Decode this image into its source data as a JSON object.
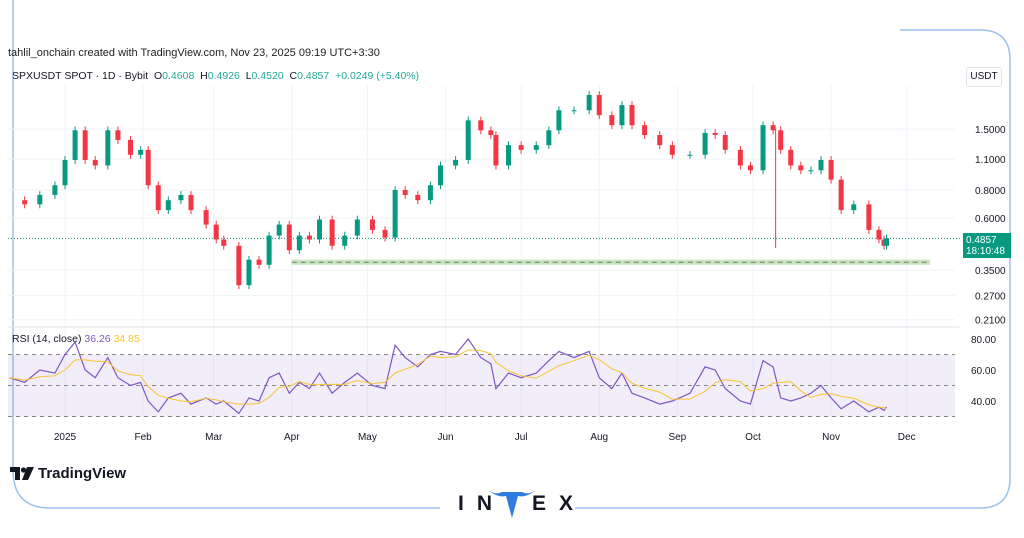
{
  "header": {
    "credit": "tahlil_onchain created with TradingView.com, Nov 23, 2025 09:19 UTC+3:30"
  },
  "legend": {
    "symbol": "SPXUSDT SPOT · 1D · Bybit",
    "o_label": "O",
    "o": "0.4608",
    "h_label": "H",
    "h": "0.4926",
    "l_label": "L",
    "l": "0.4520",
    "c_label": "C",
    "c": "0.4857",
    "change": "+0.0249 (+5.40%)"
  },
  "price_axis": {
    "unit": "USDT",
    "ticks": [
      "1.5000",
      "1.1000",
      "0.8000",
      "0.6000",
      "0.3500",
      "0.2700",
      "0.2100"
    ],
    "last_price": "0.4857",
    "countdown": "18:10:48"
  },
  "rsi": {
    "label": "RSI (14, close)",
    "value": "36.26",
    "ma_value": "34.85",
    "ticks": [
      "80.00",
      "60.00",
      "40.00"
    ]
  },
  "branding": {
    "tradingview": "TradingView",
    "invex": "INVEX"
  },
  "colors": {
    "up": "#089981",
    "down": "#f23645",
    "rsi": "#7e57c2",
    "rsi_ma": "#f7c430",
    "support": "#b9e0b0",
    "frame": "#9cc2f0",
    "invex_blue": "#2f7de1"
  },
  "chart_data": {
    "type": "candlestick",
    "scale": "log",
    "ylim": [
      0.19,
      2.4
    ],
    "grid": true,
    "x_ticks": [
      {
        "label": "2025",
        "date": "2025-01-01"
      },
      {
        "label": "Feb",
        "date": "2025-02-01"
      },
      {
        "label": "Mar",
        "date": "2025-03-01"
      },
      {
        "label": "Apr",
        "date": "2025-04-01"
      },
      {
        "label": "May",
        "date": "2025-05-01"
      },
      {
        "label": "Jun",
        "date": "2025-06-01"
      },
      {
        "label": "Jul",
        "date": "2025-07-01"
      },
      {
        "label": "Aug",
        "date": "2025-08-01"
      },
      {
        "label": "Sep",
        "date": "2025-09-01"
      },
      {
        "label": "Oct",
        "date": "2025-10-01"
      },
      {
        "label": "Nov",
        "date": "2025-11-01"
      },
      {
        "label": "Dec",
        "date": "2025-12-01"
      }
    ],
    "y_ticks": [
      1.5,
      1.1,
      0.8,
      0.6,
      0.35,
      0.27,
      0.21
    ],
    "last_price": 0.4857,
    "support_zone": {
      "low": 0.37,
      "high": 0.39,
      "from": "2025-04-01"
    },
    "crash_wick": {
      "date": "2025-10-10",
      "low": 0.44
    },
    "closes": [
      [
        "2024-12-10",
        0.72
      ],
      [
        "2024-12-16",
        0.69
      ],
      [
        "2024-12-22",
        0.76
      ],
      [
        "2024-12-28",
        0.84
      ],
      [
        "2025-01-01",
        1.09
      ],
      [
        "2025-01-05",
        1.48
      ],
      [
        "2025-01-09",
        1.09
      ],
      [
        "2025-01-13",
        1.03
      ],
      [
        "2025-01-18",
        1.48
      ],
      [
        "2025-01-22",
        1.34
      ],
      [
        "2025-01-27",
        1.15
      ],
      [
        "2025-01-31",
        1.21
      ],
      [
        "2025-02-03",
        0.84
      ],
      [
        "2025-02-07",
        0.65
      ],
      [
        "2025-02-11",
        0.72
      ],
      [
        "2025-02-16",
        0.76
      ],
      [
        "2025-02-20",
        0.65
      ],
      [
        "2025-02-26",
        0.56
      ],
      [
        "2025-03-02",
        0.48
      ],
      [
        "2025-03-05",
        0.45
      ],
      [
        "2025-03-11",
        0.3
      ],
      [
        "2025-03-15",
        0.39
      ],
      [
        "2025-03-19",
        0.37
      ],
      [
        "2025-03-23",
        0.5
      ],
      [
        "2025-03-27",
        0.56
      ],
      [
        "2025-03-31",
        0.43
      ],
      [
        "2025-04-04",
        0.5
      ],
      [
        "2025-04-08",
        0.48
      ],
      [
        "2025-04-12",
        0.59
      ],
      [
        "2025-04-17",
        0.45
      ],
      [
        "2025-04-22",
        0.5
      ],
      [
        "2025-04-27",
        0.59
      ],
      [
        "2025-05-03",
        0.53
      ],
      [
        "2025-05-08",
        0.49
      ],
      [
        "2025-05-12",
        0.8
      ],
      [
        "2025-05-16",
        0.76
      ],
      [
        "2025-05-21",
        0.72
      ],
      [
        "2025-05-26",
        0.84
      ],
      [
        "2025-05-30",
        1.03
      ],
      [
        "2025-06-05",
        1.09
      ],
      [
        "2025-06-10",
        1.64
      ],
      [
        "2025-06-15",
        1.48
      ],
      [
        "2025-06-19",
        1.41
      ],
      [
        "2025-06-21",
        1.03
      ],
      [
        "2025-06-26",
        1.27
      ],
      [
        "2025-07-01",
        1.21
      ],
      [
        "2025-07-07",
        1.27
      ],
      [
        "2025-07-12",
        1.48
      ],
      [
        "2025-07-16",
        1.82
      ],
      [
        "2025-07-22",
        1.82
      ],
      [
        "2025-07-28",
        2.13
      ],
      [
        "2025-08-01",
        1.73
      ],
      [
        "2025-08-06",
        1.56
      ],
      [
        "2025-08-10",
        1.92
      ],
      [
        "2025-08-14",
        1.56
      ],
      [
        "2025-08-19",
        1.41
      ],
      [
        "2025-08-25",
        1.27
      ],
      [
        "2025-08-30",
        1.15
      ],
      [
        "2025-09-06",
        1.15
      ],
      [
        "2025-09-12",
        1.44
      ],
      [
        "2025-09-16",
        1.41
      ],
      [
        "2025-09-20",
        1.21
      ],
      [
        "2025-09-26",
        1.03
      ],
      [
        "2025-09-30",
        0.98
      ],
      [
        "2025-10-05",
        1.56
      ],
      [
        "2025-10-09",
        1.48
      ],
      [
        "2025-10-12",
        1.21
      ],
      [
        "2025-10-16",
        1.03
      ],
      [
        "2025-10-20",
        0.98
      ],
      [
        "2025-10-24",
        0.98
      ],
      [
        "2025-10-28",
        1.09
      ],
      [
        "2025-11-01",
        0.89
      ],
      [
        "2025-11-05",
        0.65
      ],
      [
        "2025-11-10",
        0.69
      ],
      [
        "2025-11-16",
        0.53
      ],
      [
        "2025-11-20",
        0.48
      ],
      [
        "2025-11-22",
        0.45
      ],
      [
        "2025-11-23",
        0.4857
      ]
    ],
    "rsi_series": {
      "name": "RSI (14, close)",
      "levels": [
        70,
        50,
        30
      ],
      "ylim": [
        28,
        82
      ],
      "values": [
        55,
        52,
        60,
        58,
        70,
        78,
        60,
        55,
        68,
        55,
        50,
        52,
        40,
        33,
        42,
        45,
        38,
        42,
        38,
        40,
        32,
        42,
        40,
        55,
        58,
        45,
        52,
        48,
        58,
        45,
        52,
        58,
        50,
        48,
        76,
        68,
        62,
        70,
        72,
        70,
        80,
        68,
        64,
        48,
        58,
        55,
        58,
        66,
        72,
        68,
        72,
        55,
        48,
        58,
        45,
        42,
        38,
        40,
        45,
        62,
        60,
        48,
        40,
        38,
        66,
        62,
        42,
        40,
        42,
        45,
        50,
        42,
        35,
        40,
        33,
        36,
        34,
        36.26
      ]
    }
  }
}
